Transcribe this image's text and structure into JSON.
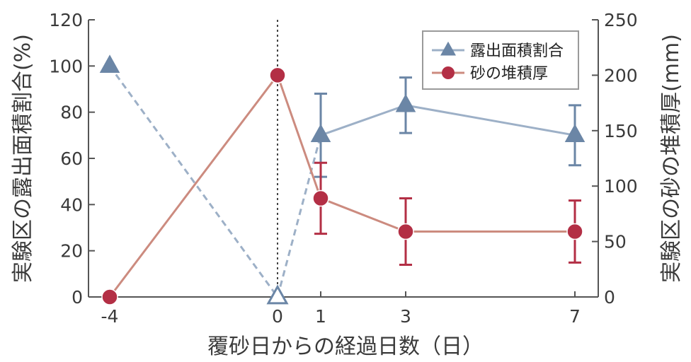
{
  "chart_data": {
    "type": "line",
    "x_ticks": [
      "-4",
      "0",
      "1",
      "3",
      "7"
    ],
    "xlabel": "覆砂日からの経過日数（日）",
    "ylabel_left": "実験区の露出面積割合(%)",
    "ylabel_right": "実験区の砂の堆積厚(mm)",
    "ylim_left": [
      0,
      120
    ],
    "ylim_right": [
      0,
      250
    ],
    "y_ticks_left": [
      "0",
      "20",
      "40",
      "60",
      "80",
      "100",
      "120"
    ],
    "y_ticks_right": [
      "0",
      "50",
      "100",
      "150",
      "200",
      "250"
    ],
    "event_marker_x": 0,
    "legend_position": "top-right",
    "series": [
      {
        "name": "露出面積割合",
        "axis": "left",
        "marker": "triangle",
        "color": "#6b86a6",
        "points": [
          {
            "x": -4,
            "y": 100,
            "err": null
          },
          {
            "x": 0,
            "y": 0,
            "err": null
          },
          {
            "x": 1,
            "y": 70,
            "err": 18
          },
          {
            "x": 3,
            "y": 83,
            "err": 12
          },
          {
            "x": 7,
            "y": 70,
            "err": 13
          }
        ],
        "dashed_until_x": 1
      },
      {
        "name": "砂の堆積厚",
        "axis": "right",
        "marker": "circle",
        "color": "#b32f45",
        "line_color": "#cc8b7f",
        "points": [
          {
            "x": -4,
            "y": 0,
            "err": null
          },
          {
            "x": 0,
            "y": 200,
            "err": null
          },
          {
            "x": 1,
            "y": 89,
            "err": 32
          },
          {
            "x": 3,
            "y": 59,
            "err": 30
          },
          {
            "x": 7,
            "y": 59,
            "err": 28
          }
        ],
        "dashed_until_x": null
      }
    ]
  }
}
